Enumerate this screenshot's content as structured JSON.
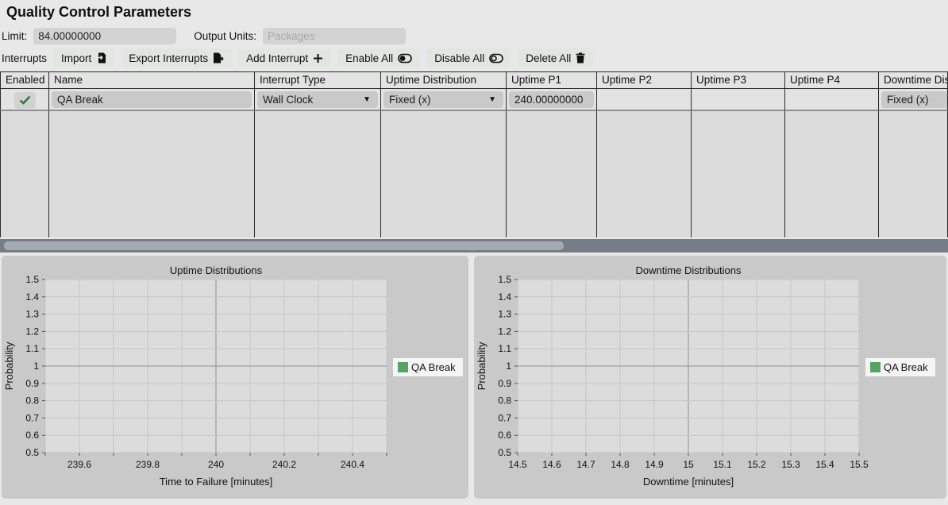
{
  "page": {
    "title": "Quality Control Parameters"
  },
  "form": {
    "limit_label": "Limit:",
    "limit_value": "84.00000000",
    "output_units_label": "Output Units:",
    "output_units_placeholder": "Packages"
  },
  "toolbar": {
    "label": "Interrupts",
    "buttons": [
      {
        "label": "Import",
        "icon": "import-icon"
      },
      {
        "label": "Export Interrupts",
        "icon": "export-icon"
      },
      {
        "label": "Add Interrupt",
        "icon": "plus-icon"
      },
      {
        "label": "Enable All",
        "icon": "toggle-on-icon"
      },
      {
        "label": "Disable All",
        "icon": "toggle-off-icon"
      },
      {
        "label": "Delete All",
        "icon": "trash-icon"
      }
    ]
  },
  "table": {
    "columns": [
      "Enabled",
      "Name",
      "Interrupt Type",
      "Uptime Distribution",
      "Uptime P1",
      "Uptime P2",
      "Uptime P3",
      "Uptime P4",
      "Downtime Distribution"
    ],
    "rows": [
      {
        "enabled": true,
        "name": "QA Break",
        "interrupt_type": "Wall Clock",
        "uptime_distribution": "Fixed (x)",
        "uptime_p1": "240.00000000",
        "uptime_p2": "",
        "uptime_p3": "",
        "uptime_p4": "",
        "downtime_distribution": "Fixed (x)"
      }
    ]
  },
  "colors": {
    "accent_green": "#57a464",
    "check_green": "#2e7d32",
    "panel_gray": "#c9c9c9",
    "plot_gray": "#dcdcdc"
  },
  "chart_data": [
    {
      "type": "line",
      "name": "uptime-distributions",
      "title": "Uptime Distributions",
      "xlabel": "Time to Failure [minutes]",
      "ylabel": "Probability",
      "xlim": [
        239.5,
        240.5
      ],
      "ylim": [
        0.5,
        1.5
      ],
      "xticks": [
        239.5,
        239.6,
        239.7,
        239.8,
        239.9,
        240,
        240.1,
        240.2,
        240.3,
        240.4,
        240.5
      ],
      "xtick_labels": [
        "",
        "239.6",
        "",
        "239.8",
        "",
        "240",
        "",
        "240.2",
        "",
        "240.4",
        ""
      ],
      "yticks": [
        0.5,
        0.6,
        0.7,
        0.8,
        0.9,
        1,
        1.1,
        1.2,
        1.3,
        1.4,
        1.5
      ],
      "ytick_labels": [
        "0.5",
        "0.6",
        "0.7",
        "0.8",
        "0.9",
        "1",
        "1.1",
        "1.2",
        "1.3",
        "1.4",
        "1.5"
      ],
      "grid": true,
      "crosshair_x": 240,
      "crosshair_y": 1,
      "legend_position": "center right",
      "legend": [
        {
          "label": "QA Break",
          "color": "#57a464"
        }
      ],
      "series": []
    },
    {
      "type": "line",
      "name": "downtime-distributions",
      "title": "Downtime Distributions",
      "xlabel": "Downtime [minutes]",
      "ylabel": "Probability",
      "xlim": [
        14.5,
        15.5
      ],
      "ylim": [
        0.5,
        1.5
      ],
      "xticks": [
        14.5,
        14.6,
        14.7,
        14.8,
        14.9,
        15,
        15.1,
        15.2,
        15.3,
        15.4,
        15.5
      ],
      "xtick_labels": [
        "14.5",
        "14.6",
        "14.7",
        "14.8",
        "14.9",
        "15",
        "15.1",
        "15.2",
        "15.3",
        "15.4",
        "15.5"
      ],
      "yticks": [
        0.5,
        0.6,
        0.7,
        0.8,
        0.9,
        1,
        1.1,
        1.2,
        1.3,
        1.4,
        1.5
      ],
      "ytick_labels": [
        "0.5",
        "0.6",
        "0.7",
        "0.8",
        "0.9",
        "1",
        "1.1",
        "1.2",
        "1.3",
        "1.4",
        "1.5"
      ],
      "grid": true,
      "crosshair_x": 15,
      "crosshair_y": 1,
      "legend_position": "center right",
      "legend": [
        {
          "label": "QA Break",
          "color": "#57a464"
        }
      ],
      "series": []
    }
  ]
}
